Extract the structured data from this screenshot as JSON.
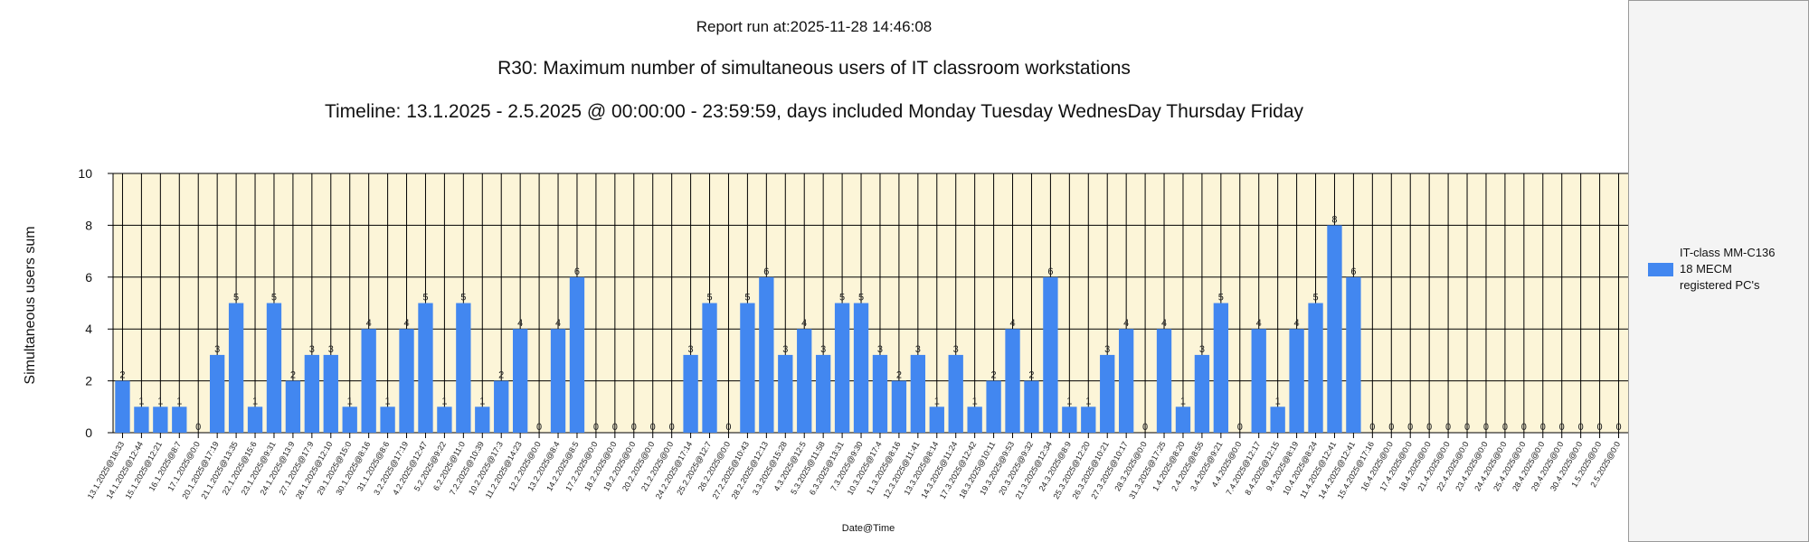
{
  "header": {
    "run_at": "Report run at:2025-11-28 14:46:08",
    "title": "R30: Maximum number of simultaneous users of IT classroom workstations",
    "timeline": "Timeline: 13.1.2025  - 2.5.2025  @  00:00:00 -  23:59:59, days included Monday Tuesday WednesDay Thursday Friday"
  },
  "colors": {
    "bar": "#4287f0",
    "plot_background": "#fcf5d8",
    "grid": "#000000",
    "legend_background": "#f4f4f4"
  },
  "chart_data": {
    "type": "bar",
    "title": "R30: Maximum number of simultaneous users of IT classroom workstations",
    "xlabel": "Date@Time",
    "ylabel": "Simultaneous users sum",
    "ylim": [
      0,
      10
    ],
    "yticks": [
      0,
      2,
      4,
      6,
      8,
      10
    ],
    "grid": true,
    "legend_position": "right",
    "categories": [
      "13.1.2025@18:33",
      "14.1.2025@12:44",
      "15.1.2025@12:21",
      "16.1.2025@8:7",
      "17.1.2025@0:0",
      "20.1.2025@17:19",
      "21.1.2025@13:35",
      "22.1.2025@15:6",
      "23.1.2025@9:31",
      "24.1.2025@13:9",
      "27.1.2025@17:9",
      "28.1.2025@12:10",
      "29.1.2025@15:0",
      "30.1.2025@8:16",
      "31.1.2025@8:6",
      "3.2.2025@17:19",
      "4.2.2025@12:47",
      "5.2.2025@9:22",
      "6.2.2025@11:0",
      "7.2.2025@10:39",
      "10.2.2025@17:3",
      "11.2.2025@14:23",
      "12.2.2025@0:0",
      "13.2.2025@8:4",
      "14.2.2025@8:5",
      "17.2.2025@0:0",
      "18.2.2025@0:0",
      "19.2.2025@0:0",
      "20.2.2025@0:0",
      "21.2.2025@0:0",
      "24.2.2025@17:14",
      "25.2.2025@12:7",
      "26.2.2025@0:0",
      "27.2.2025@10:43",
      "28.2.2025@12:13",
      "3.3.2025@15:28",
      "4.3.2025@12:5",
      "5.3.2025@11:58",
      "6.3.2025@13:31",
      "7.3.2025@9:30",
      "10.3.2025@17:4",
      "11.3.2025@8:16",
      "12.3.2025@11:41",
      "13.3.2025@8:14",
      "14.3.2025@11:24",
      "17.3.2025@12:42",
      "18.3.2025@10:11",
      "19.3.2025@9:53",
      "20.3.2025@9:32",
      "21.3.2025@12:34",
      "24.3.2025@8:9",
      "25.3.2025@12:20",
      "26.3.2025@10:21",
      "27.3.2025@10:17",
      "28.3.2025@0:0",
      "31.3.2025@17:25",
      "1.4.2025@8:20",
      "2.4.2025@8:55",
      "3.4.2025@9:21",
      "4.4.2025@0:0",
      "7.4.2025@12:17",
      "8.4.2025@12:15",
      "9.4.2025@8:19",
      "10.4.2025@8:24",
      "11.4.2025@12:41",
      "14.4.2025@12:41",
      "15.4.2025@17:16",
      "16.4.2025@0:0",
      "17.4.2025@0:0",
      "18.4.2025@0:0",
      "21.4.2025@0:0",
      "22.4.2025@0:0",
      "23.4.2025@0:0",
      "24.4.2025@0:0",
      "25.4.2025@0:0",
      "28.4.2025@0:0",
      "29.4.2025@0:0",
      "30.4.2025@0:0",
      "1.5.2025@0:0",
      "2.5.2025@0:0"
    ],
    "series": [
      {
        "name": "IT-class MM-C136 18 MECM registered PC's",
        "values": [
          2,
          1,
          1,
          1,
          0,
          3,
          5,
          1,
          5,
          2,
          3,
          3,
          1,
          4,
          1,
          4,
          5,
          1,
          5,
          1,
          2,
          4,
          0,
          4,
          6,
          0,
          0,
          0,
          0,
          0,
          3,
          5,
          0,
          5,
          6,
          3,
          4,
          3,
          5,
          5,
          3,
          2,
          3,
          1,
          3,
          1,
          2,
          4,
          2,
          6,
          1,
          1,
          3,
          4,
          0,
          4,
          1,
          3,
          5,
          0,
          4,
          1,
          4,
          5,
          8,
          6,
          0,
          0,
          0,
          0,
          0,
          0,
          0,
          0,
          0,
          0,
          0,
          0,
          0,
          0
        ]
      }
    ]
  },
  "legend": {
    "label": "IT-class MM-C136\n18 MECM\n registered PC's"
  }
}
